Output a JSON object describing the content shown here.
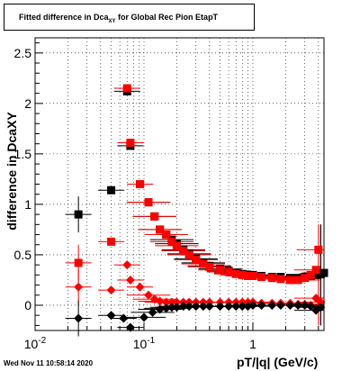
{
  "title": {
    "prefix": "Fitted difference in Dca",
    "sub": "XY",
    "suffix": " for Global Rec Pion EtapT"
  },
  "timestamp": "Wed Nov 11 10:58:14 2020",
  "chart_data": {
    "type": "scatter",
    "title": "Fitted difference in Dca_XY for Global Rec Pion EtapT",
    "xlabel": "pT/|q| (GeV/c)",
    "ylabel": "difference in Dca_XY",
    "xscale": "log",
    "xlim": [
      0.01,
      4.5
    ],
    "ylim": [
      -0.25,
      2.65
    ],
    "grid": true,
    "x_tick_labels": [
      "10^-2",
      "10^-1",
      "1"
    ],
    "y_tick_labels": [
      "0",
      "0.5",
      "1",
      "1.5",
      "2",
      "2.5"
    ],
    "series": [
      {
        "marker": "square",
        "color": "#000000",
        "x": [
          0.025,
          0.05,
          0.07,
          0.075,
          0.092,
          0.11,
          0.125,
          0.14,
          0.16,
          0.18,
          0.2,
          0.23,
          0.26,
          0.3,
          0.35,
          0.4,
          0.5,
          0.6,
          0.7,
          0.8,
          0.9,
          1.0,
          1.2,
          1.5,
          1.8,
          2.2,
          2.6,
          3.0,
          3.4,
          3.8,
          4.2,
          4.5
        ],
        "y": [
          0.9,
          1.14,
          2.12,
          1.58,
          1.2,
          1.02,
          0.88,
          0.75,
          0.7,
          0.65,
          0.61,
          0.55,
          0.51,
          0.46,
          0.42,
          0.39,
          0.36,
          0.34,
          0.32,
          0.31,
          0.3,
          0.3,
          0.29,
          0.28,
          0.28,
          0.27,
          0.27,
          0.28,
          0.29,
          0.3,
          0.31,
          0.32
        ]
      },
      {
        "marker": "square",
        "color": "#ff0000",
        "x": [
          0.025,
          0.05,
          0.07,
          0.075,
          0.092,
          0.11,
          0.125,
          0.14,
          0.16,
          0.18,
          0.2,
          0.23,
          0.26,
          0.3,
          0.35,
          0.4,
          0.5,
          0.6,
          0.7,
          0.8,
          0.9,
          1.0,
          1.2,
          1.5,
          1.8,
          2.2,
          2.6,
          3.0,
          3.4,
          3.8,
          4.0
        ],
        "y": [
          0.42,
          0.63,
          2.15,
          1.61,
          1.2,
          1.02,
          0.88,
          0.75,
          0.7,
          0.63,
          0.59,
          0.54,
          0.5,
          0.45,
          0.41,
          0.38,
          0.35,
          0.33,
          0.31,
          0.3,
          0.29,
          0.29,
          0.28,
          0.27,
          0.26,
          0.25,
          0.25,
          0.27,
          0.3,
          0.35,
          0.55
        ]
      },
      {
        "marker": "diamond",
        "color": "#ff0000",
        "x": [
          0.025,
          0.05,
          0.07,
          0.075,
          0.092,
          0.11,
          0.125,
          0.14,
          0.16,
          0.18,
          0.2,
          0.23,
          0.26,
          0.3,
          0.35,
          0.4,
          0.5,
          0.6,
          0.7,
          0.8,
          0.9,
          1.0,
          1.2,
          1.5,
          1.8,
          2.2,
          2.6,
          3.0,
          3.4,
          3.8,
          4.2
        ],
        "y": [
          0.18,
          0.15,
          0.4,
          0.25,
          0.18,
          0.1,
          0.06,
          0.04,
          0.03,
          0.03,
          0.03,
          0.03,
          0.03,
          0.03,
          0.03,
          0.03,
          0.03,
          0.03,
          0.03,
          0.03,
          0.03,
          0.03,
          0.02,
          0.02,
          0.02,
          0.02,
          0.01,
          0.01,
          0.0,
          0.07,
          0.03
        ]
      },
      {
        "marker": "diamond",
        "color": "#000000",
        "x": [
          0.025,
          0.05,
          0.065,
          0.075,
          0.1,
          0.12,
          0.14,
          0.16,
          0.18,
          0.2,
          0.23,
          0.26,
          0.3,
          0.35,
          0.4,
          0.5,
          0.6,
          0.7,
          0.8,
          0.9,
          1.0,
          1.2,
          1.5,
          1.8,
          2.2,
          2.6,
          3.0,
          3.4,
          3.8,
          4.2
        ],
        "y": [
          -0.13,
          -0.1,
          -0.13,
          -0.22,
          -0.12,
          -0.07,
          -0.04,
          -0.03,
          -0.02,
          -0.02,
          -0.01,
          -0.01,
          -0.01,
          -0.01,
          -0.01,
          -0.01,
          -0.01,
          -0.01,
          -0.01,
          -0.01,
          0.0,
          0.0,
          0.0,
          0.0,
          0.0,
          0.0,
          0.0,
          -0.01,
          -0.05,
          -0.02
        ]
      }
    ]
  }
}
